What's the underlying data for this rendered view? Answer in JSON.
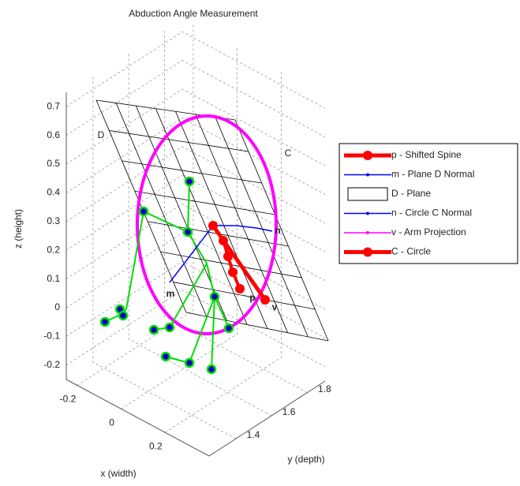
{
  "chart_data": {
    "type": "scatter3",
    "title": "Abduction Angle Measurement",
    "xlabel": "x (width)",
    "ylabel": "y (depth)",
    "zlabel": "z (height)",
    "xlim": [
      -0.25,
      0.4
    ],
    "ylim": [
      1.25,
      1.9
    ],
    "zlim": [
      -0.25,
      0.75
    ],
    "xticks": [
      -0.2,
      0,
      0.2
    ],
    "yticks": [
      1.4,
      1.6,
      1.8
    ],
    "zticks": [
      -0.2,
      -0.1,
      0,
      0.1,
      0.2,
      0.3,
      0.4,
      0.5,
      0.6,
      0.7
    ],
    "grid": true,
    "legend": [
      {
        "name": "p - Shifted Spine",
        "color": "#ff0000"
      },
      {
        "name": "m - Plane D Normal",
        "color": "#0000ff"
      },
      {
        "name": "D - Plane",
        "color": "#000000"
      },
      {
        "name": "n - Circle C Normal",
        "color": "#0000ff"
      },
      {
        "name": "v - Arm Projection",
        "color": "#ff00ff"
      },
      {
        "name": "C - Circle",
        "color": "#ff0000"
      }
    ],
    "annotations": [
      "D",
      "C",
      "m",
      "n",
      "p",
      "v"
    ]
  }
}
